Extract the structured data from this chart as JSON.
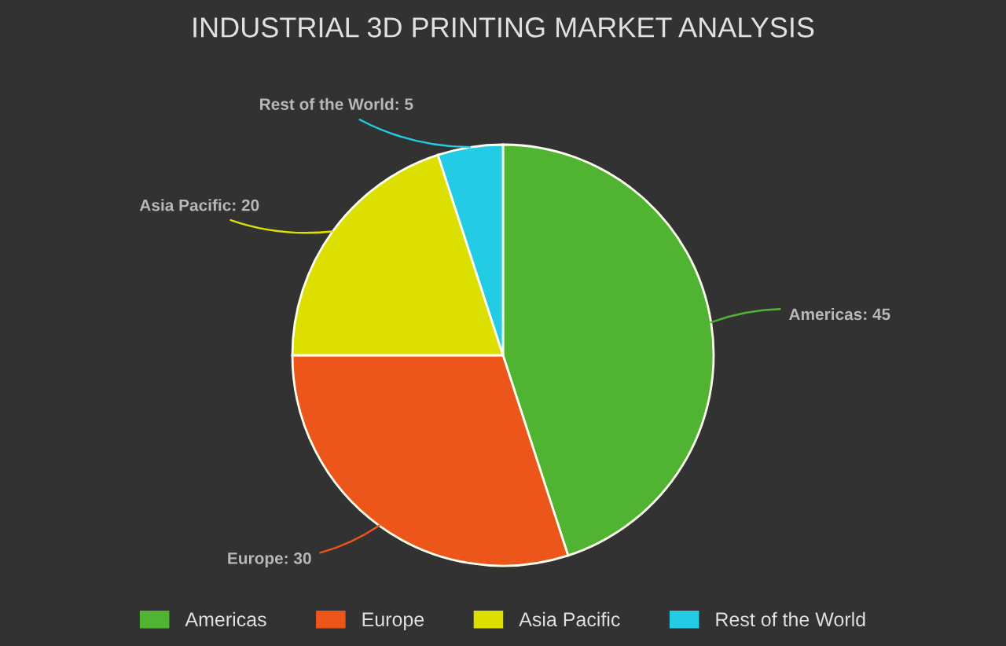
{
  "chart_data": {
    "type": "pie",
    "title": "INDUSTRIAL 3D PRINTING MARKET ANALYSIS",
    "categories": [
      "Americas",
      "Europe",
      "Asia Pacific",
      "Rest of the World"
    ],
    "values": [
      45,
      30,
      20,
      5
    ],
    "colors": [
      "#50b432",
      "#ed561b",
      "#dddf00",
      "#24cbe5"
    ],
    "value_labels": [
      "Americas: 45",
      "Europe: 30",
      "Asia Pacific: 20",
      "Rest of the World: 5"
    ],
    "legend": "bottom"
  }
}
